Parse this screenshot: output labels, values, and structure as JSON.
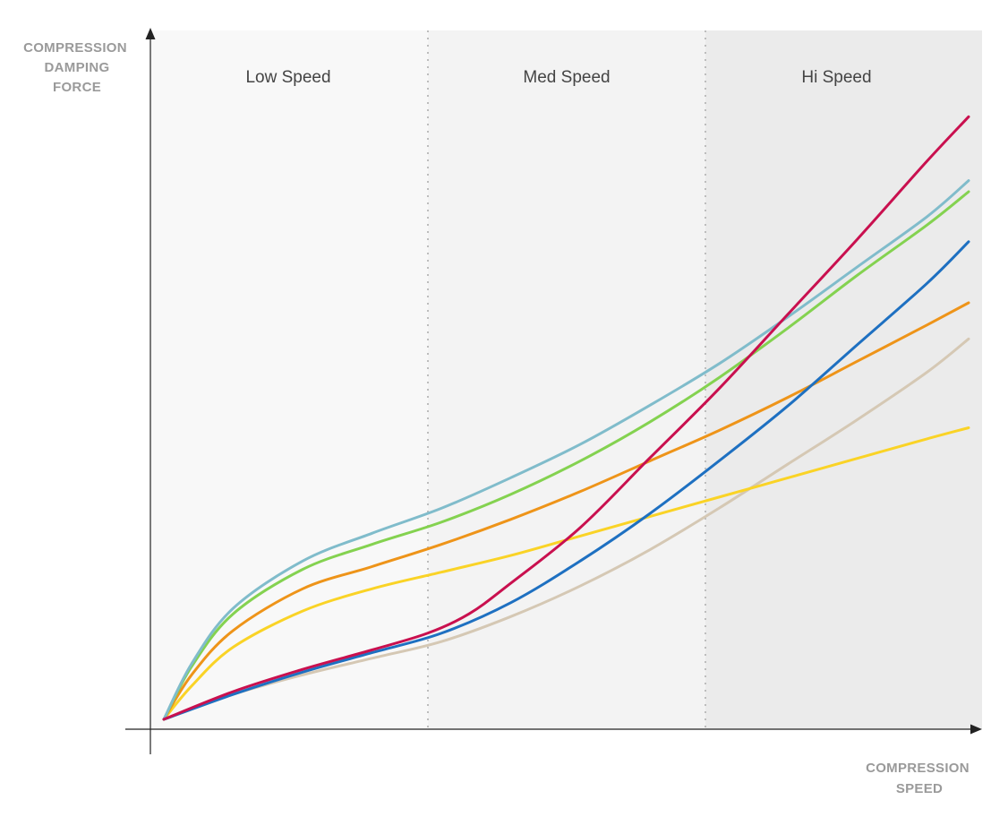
{
  "chart_data": {
    "type": "line",
    "title": "",
    "ylabel_lines": [
      "COMPRESSION",
      "DAMPING",
      "FORCE"
    ],
    "xlabel_lines": [
      "COMPRESSION",
      "SPEED"
    ],
    "zones": [
      {
        "label": "Low Speed",
        "x_range": [
          0,
          1
        ],
        "shade": "#f8f8f8"
      },
      {
        "label": "Med Speed",
        "x_range": [
          1,
          2
        ],
        "shade": "#f3f3f3"
      },
      {
        "label": "Hi Speed",
        "x_range": [
          2,
          3
        ],
        "shade": "#ebebeb"
      }
    ],
    "xlim": [
      0,
      3
    ],
    "ylim": [
      0,
      10
    ],
    "grid": false,
    "series": [
      {
        "color": "#80bccb",
        "points": [
          [
            0,
            0.1
          ],
          [
            0.1,
            1.1
          ],
          [
            0.25,
            2.1
          ],
          [
            0.5,
            2.95
          ],
          [
            0.75,
            3.45
          ],
          [
            1,
            3.9
          ],
          [
            1.25,
            4.45
          ],
          [
            1.5,
            5.05
          ],
          [
            1.75,
            5.75
          ],
          [
            2,
            6.5
          ],
          [
            2.25,
            7.35
          ],
          [
            2.5,
            8.25
          ],
          [
            2.75,
            9.15
          ],
          [
            2.9,
            9.8
          ]
        ]
      },
      {
        "color": "#84d250",
        "points": [
          [
            0,
            0.1
          ],
          [
            0.1,
            1.05
          ],
          [
            0.25,
            2.0
          ],
          [
            0.5,
            2.8
          ],
          [
            0.75,
            3.25
          ],
          [
            1,
            3.65
          ],
          [
            1.25,
            4.15
          ],
          [
            1.5,
            4.75
          ],
          [
            1.75,
            5.45
          ],
          [
            2,
            6.25
          ],
          [
            2.25,
            7.15
          ],
          [
            2.5,
            8.1
          ],
          [
            2.75,
            9.0
          ],
          [
            2.9,
            9.6
          ]
        ]
      },
      {
        "color": "#ee9419",
        "points": [
          [
            0,
            0.1
          ],
          [
            0.1,
            0.9
          ],
          [
            0.25,
            1.7
          ],
          [
            0.5,
            2.45
          ],
          [
            0.75,
            2.85
          ],
          [
            1,
            3.25
          ],
          [
            1.25,
            3.7
          ],
          [
            1.5,
            4.2
          ],
          [
            1.75,
            4.75
          ],
          [
            2,
            5.3
          ],
          [
            2.25,
            5.9
          ],
          [
            2.5,
            6.55
          ],
          [
            2.75,
            7.2
          ],
          [
            2.9,
            7.6
          ]
        ]
      },
      {
        "color": "#fad326",
        "points": [
          [
            0,
            0.1
          ],
          [
            0.1,
            0.7
          ],
          [
            0.25,
            1.4
          ],
          [
            0.5,
            2.05
          ],
          [
            0.75,
            2.45
          ],
          [
            1,
            2.75
          ],
          [
            1.25,
            3.05
          ],
          [
            1.5,
            3.4
          ],
          [
            1.75,
            3.75
          ],
          [
            2,
            4.1
          ],
          [
            2.25,
            4.45
          ],
          [
            2.5,
            4.8
          ],
          [
            2.75,
            5.15
          ],
          [
            2.9,
            5.35
          ]
        ]
      },
      {
        "color": "#c9104f",
        "points": [
          [
            0,
            0.1
          ],
          [
            0.25,
            0.6
          ],
          [
            0.5,
            1.0
          ],
          [
            0.75,
            1.35
          ],
          [
            0.95,
            1.65
          ],
          [
            1.1,
            2.0
          ],
          [
            1.25,
            2.55
          ],
          [
            1.5,
            3.55
          ],
          [
            1.75,
            4.8
          ],
          [
            2,
            6.05
          ],
          [
            2.25,
            7.4
          ],
          [
            2.5,
            8.75
          ],
          [
            2.75,
            10.15
          ],
          [
            2.9,
            10.95
          ]
        ]
      },
      {
        "color": "#1e70c1",
        "points": [
          [
            0,
            0.1
          ],
          [
            0.25,
            0.55
          ],
          [
            0.5,
            0.95
          ],
          [
            0.75,
            1.3
          ],
          [
            1,
            1.65
          ],
          [
            1.25,
            2.2
          ],
          [
            1.5,
            2.95
          ],
          [
            1.75,
            3.8
          ],
          [
            2,
            4.75
          ],
          [
            2.25,
            5.75
          ],
          [
            2.5,
            6.85
          ],
          [
            2.75,
            7.95
          ],
          [
            2.9,
            8.7
          ]
        ]
      },
      {
        "color": "#d5c8b4",
        "points": [
          [
            0,
            0.1
          ],
          [
            0.25,
            0.55
          ],
          [
            0.5,
            0.9
          ],
          [
            0.75,
            1.2
          ],
          [
            1,
            1.5
          ],
          [
            1.25,
            1.95
          ],
          [
            1.5,
            2.5
          ],
          [
            1.75,
            3.15
          ],
          [
            2,
            3.9
          ],
          [
            2.25,
            4.7
          ],
          [
            2.5,
            5.5
          ],
          [
            2.75,
            6.35
          ],
          [
            2.9,
            6.95
          ]
        ]
      }
    ]
  }
}
